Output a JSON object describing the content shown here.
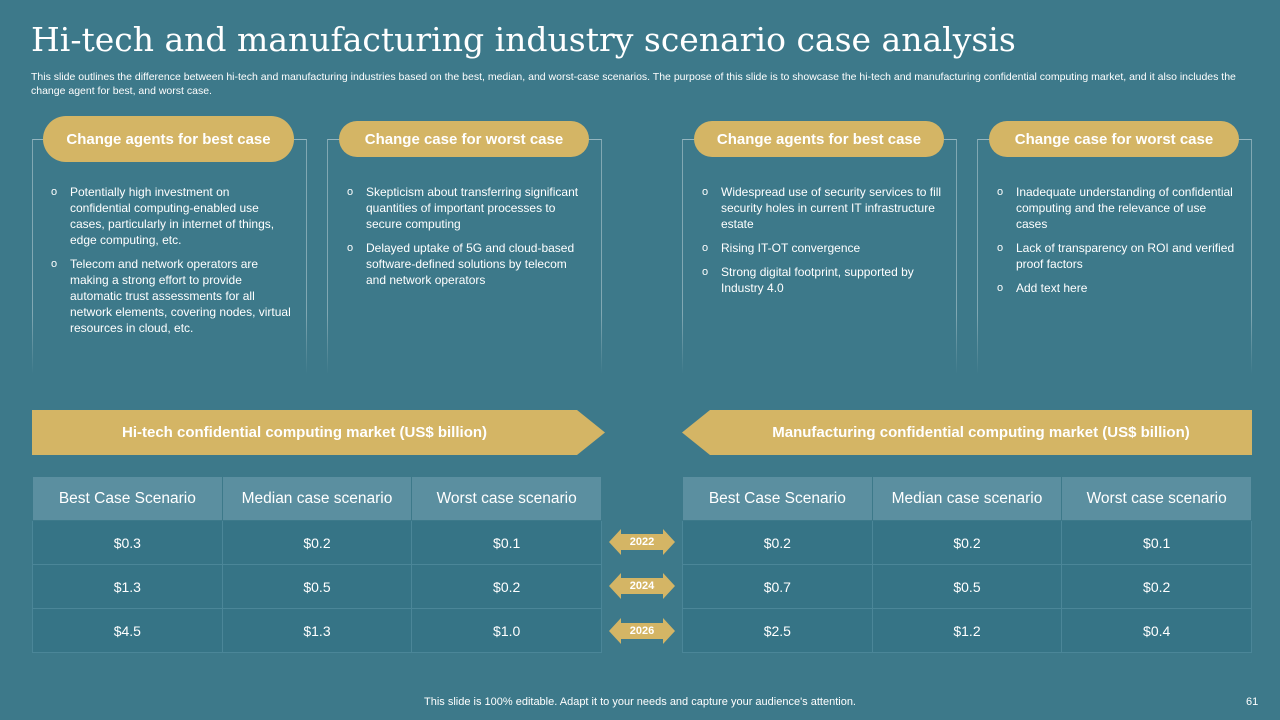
{
  "title": "Hi-tech and manufacturing industry scenario case analysis",
  "subtitle": "This slide outlines the difference between hi-tech and manufacturing industries based on the best, median, and worst-case scenarios. The purpose of this slide is to showcase the hi-tech and manufacturing confidential computing market, and it also includes the change agent for best, and worst case.",
  "cards": [
    {
      "heading": "Change agents for best case",
      "bullets": [
        "Potentially high investment on confidential computing-enabled use cases, particularly in internet of things, edge computing, etc.",
        "Telecom and network operators are making a strong effort to provide automatic trust assessments for all network elements, covering nodes, virtual resources in cloud, etc."
      ]
    },
    {
      "heading": "Change case for worst case",
      "bullets": [
        "Skepticism about transferring significant quantities of important processes to secure computing",
        "Delayed uptake of 5G and cloud-based software-defined solutions by telecom and network operators"
      ]
    },
    {
      "heading": "Change agents for best case",
      "bullets": [
        "Widespread use of security services to fill security holes in current IT infrastructure estate",
        "Rising IT-OT convergence",
        "Strong digital footprint, supported by Industry 4.0"
      ]
    },
    {
      "heading": "Change case for worst case",
      "bullets": [
        "Inadequate understanding of confidential computing and the relevance of use cases",
        "Lack of transparency on ROI and verified proof factors",
        "Add text here"
      ]
    }
  ],
  "banners": {
    "left": "Hi-tech confidential computing market (US$ billion)",
    "right": "Manufacturing confidential computing market (US$ billion)"
  },
  "tables": {
    "left": {
      "headers": [
        "Best Case Scenario",
        "Median case scenario",
        "Worst case scenario"
      ],
      "rows": [
        [
          "$0.3",
          "$0.2",
          "$0.1"
        ],
        [
          "$1.3",
          "$0.5",
          "$0.2"
        ],
        [
          "$4.5",
          "$1.3",
          "$1.0"
        ]
      ]
    },
    "right": {
      "headers": [
        "Best Case Scenario",
        "Median case scenario",
        "Worst case scenario"
      ],
      "rows": [
        [
          "$0.2",
          "$0.2",
          "$0.1"
        ],
        [
          "$0.7",
          "$0.5",
          "$0.2"
        ],
        [
          "$2.5",
          "$1.2",
          "$0.4"
        ]
      ]
    }
  },
  "years": [
    "2022",
    "2024",
    "2026"
  ],
  "footer": "This slide is 100% editable. Adapt it to your needs and capture your audience's attention.",
  "page_number": "61",
  "colors": {
    "background": "#3d798a",
    "accent": "#d4b565",
    "header_cell": "#5b8fa0"
  }
}
